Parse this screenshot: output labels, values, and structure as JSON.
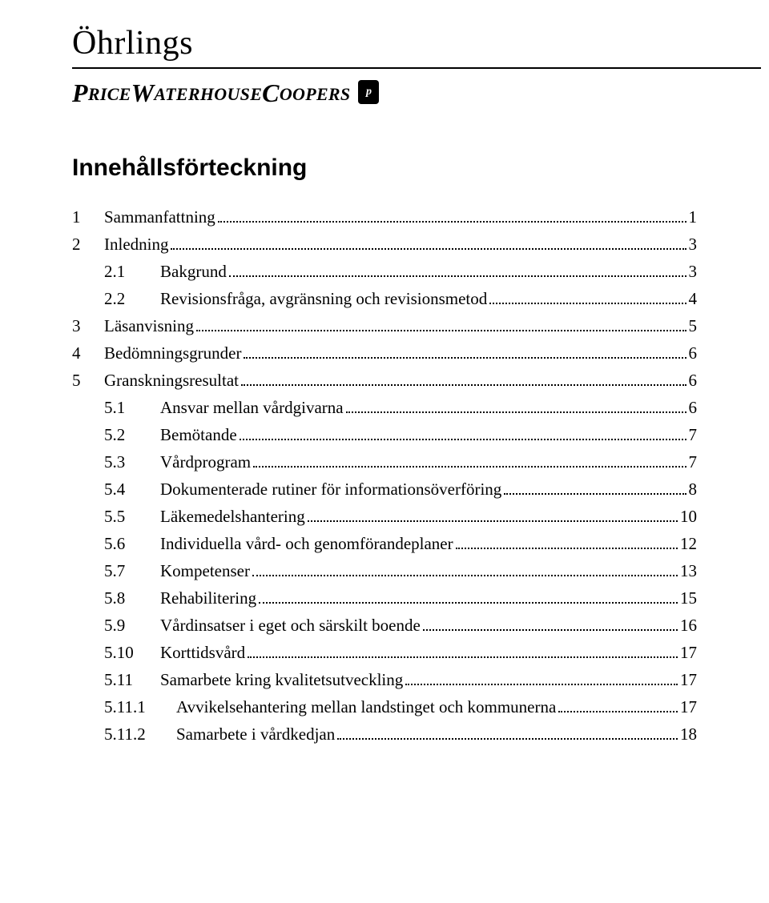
{
  "logo": {
    "line1": "Öhrlings",
    "line2_parts": [
      "P",
      "RICE",
      "W",
      "ATERHOUSE",
      "C",
      "OOPERS"
    ],
    "badge": "p"
  },
  "heading": "Innehållsförteckning",
  "toc": [
    {
      "level": 1,
      "num": "1",
      "label": "Sammanfattning",
      "page": "1"
    },
    {
      "level": 1,
      "num": "2",
      "label": "Inledning",
      "page": "3"
    },
    {
      "level": 2,
      "num": "2.1",
      "label": "Bakgrund",
      "page": "3"
    },
    {
      "level": 2,
      "num": "2.2",
      "label": "Revisionsfråga, avgränsning och revisionsmetod",
      "page": "4"
    },
    {
      "level": 1,
      "num": "3",
      "label": "Läsanvisning",
      "page": "5"
    },
    {
      "level": 1,
      "num": "4",
      "label": "Bedömningsgrunder",
      "page": "6"
    },
    {
      "level": 1,
      "num": "5",
      "label": "Granskningsresultat",
      "page": "6"
    },
    {
      "level": 2,
      "num": "5.1",
      "label": "Ansvar mellan vårdgivarna",
      "page": "6"
    },
    {
      "level": 2,
      "num": "5.2",
      "label": "Bemötande",
      "page": "7"
    },
    {
      "level": 2,
      "num": "5.3",
      "label": "Vårdprogram",
      "page": "7"
    },
    {
      "level": 2,
      "num": "5.4",
      "label": "Dokumenterade rutiner för informationsöverföring",
      "page": "8"
    },
    {
      "level": 2,
      "num": "5.5",
      "label": "Läkemedelshantering",
      "page": "10"
    },
    {
      "level": 2,
      "num": "5.6",
      "label": "Individuella vård- och genomförandeplaner",
      "page": "12"
    },
    {
      "level": 2,
      "num": "5.7",
      "label": "Kompetenser",
      "page": "13"
    },
    {
      "level": 2,
      "num": "5.8",
      "label": "Rehabilitering",
      "page": "15"
    },
    {
      "level": 2,
      "num": "5.9",
      "label": "Vårdinsatser i eget och särskilt boende",
      "page": "16"
    },
    {
      "level": 2,
      "num": "5.10",
      "label": "Korttidsvård",
      "page": "17"
    },
    {
      "level": 2,
      "num": "5.11",
      "label": "Samarbete kring kvalitetsutveckling",
      "page": "17"
    },
    {
      "level": 3,
      "num": "5.11.1",
      "label": "Avvikelsehantering mellan landstinget och kommunerna",
      "page": "17"
    },
    {
      "level": 3,
      "num": "5.11.2",
      "label": "Samarbete i vårdkedjan",
      "page": "18"
    }
  ],
  "colors": {
    "text": "#000000",
    "background": "#ffffff",
    "leader": "#000000"
  },
  "fonts": {
    "heading_family": "Arial",
    "heading_size_pt": 22,
    "body_family": "Times New Roman",
    "body_size_pt": 16
  }
}
